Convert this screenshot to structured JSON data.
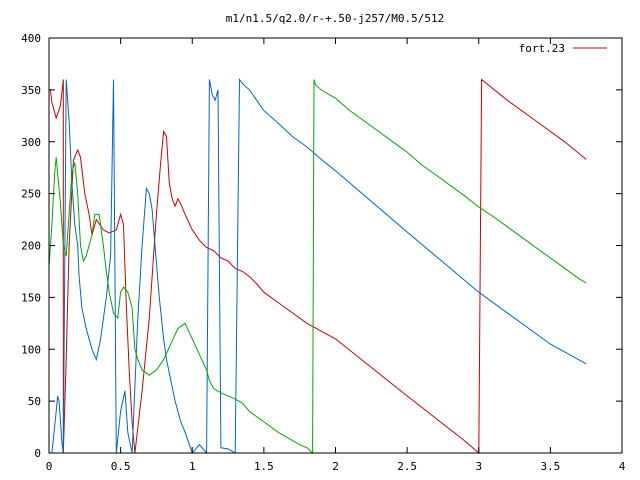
{
  "chart_data": {
    "type": "line",
    "title": "m1/n1.5/q2.0/r-+.50-j257/M0.5/512",
    "xlabel": "",
    "ylabel": "",
    "xlim": [
      0,
      4
    ],
    "ylim": [
      0,
      400
    ],
    "x_ticks": [
      0,
      0.5,
      1,
      1.5,
      2,
      2.5,
      3,
      3.5,
      4
    ],
    "x_tick_labels": [
      "0",
      "0.5",
      "1",
      "1.5",
      "2",
      "2.5",
      "3",
      "3.5",
      "4"
    ],
    "y_ticks": [
      0,
      50,
      100,
      150,
      200,
      250,
      300,
      350,
      400
    ],
    "y_tick_labels": [
      "0",
      "50",
      "100",
      "150",
      "200",
      "250",
      "300",
      "350",
      "400"
    ],
    "grid": false,
    "legend_position": "top-right",
    "legend": [
      {
        "label": "fort.23",
        "color": "#cc0000"
      }
    ],
    "series": [
      {
        "color": "#cc0000",
        "x": [
          0.0,
          0.01,
          0.02,
          0.05,
          0.08,
          0.1,
          0.1,
          0.12,
          0.14,
          0.17,
          0.2,
          0.22,
          0.25,
          0.28,
          0.3,
          0.33,
          0.38,
          0.42,
          0.47,
          0.5,
          0.52,
          0.54,
          0.56,
          0.58,
          0.6,
          0.65,
          0.7,
          0.75,
          0.78,
          0.8,
          0.82,
          0.84,
          0.86,
          0.88,
          0.9,
          0.92,
          0.95,
          1.0,
          1.05,
          1.1,
          1.15,
          1.2,
          1.25,
          1.3,
          1.35,
          1.4,
          1.45,
          1.5,
          1.6,
          1.7,
          1.8,
          2.0,
          2.5,
          2.9,
          3.0,
          3.0,
          3.02,
          3.2,
          3.4,
          3.6,
          3.75
        ],
        "y": [
          350,
          350,
          338,
          323,
          335,
          360,
          0,
          90,
          200,
          282,
          292,
          285,
          250,
          230,
          210,
          225,
          215,
          212,
          215,
          230,
          220,
          140,
          80,
          30,
          0,
          60,
          130,
          230,
          280,
          310,
          305,
          260,
          245,
          238,
          245,
          240,
          230,
          215,
          205,
          198,
          195,
          188,
          185,
          178,
          175,
          170,
          163,
          155,
          145,
          135,
          125,
          110,
          55,
          12,
          0,
          0,
          360,
          340,
          320,
          300,
          283
        ]
      },
      {
        "color": "#0066cc",
        "x": [
          0.0,
          0.02,
          0.05,
          0.06,
          0.07,
          0.08,
          0.09,
          0.1,
          0.12,
          0.14,
          0.16,
          0.18,
          0.2,
          0.21,
          0.23,
          0.26,
          0.3,
          0.33,
          0.36,
          0.4,
          0.43,
          0.45,
          0.47,
          0.5,
          0.53,
          0.55,
          0.58,
          0.62,
          0.65,
          0.68,
          0.7,
          0.72,
          0.74,
          0.77,
          0.8,
          0.82,
          0.85,
          0.88,
          0.92,
          0.95,
          1.0,
          1.05,
          1.1,
          1.12,
          1.14,
          1.16,
          1.18,
          1.2,
          1.25,
          1.3,
          1.33,
          1.35,
          1.4,
          1.45,
          1.5,
          1.6,
          1.7,
          1.8,
          1.9,
          2.0,
          2.5,
          3.0,
          3.5,
          3.75
        ],
        "y": [
          0,
          0,
          40,
          55,
          50,
          30,
          10,
          0,
          360,
          320,
          260,
          220,
          200,
          170,
          140,
          120,
          100,
          90,
          110,
          150,
          190,
          360,
          0,
          40,
          60,
          20,
          0,
          130,
          200,
          255,
          250,
          235,
          200,
          150,
          110,
          90,
          70,
          50,
          30,
          20,
          0,
          8,
          0,
          360,
          345,
          340,
          350,
          5,
          4,
          0,
          360,
          356,
          350,
          340,
          330,
          318,
          305,
          295,
          283,
          272,
          213,
          155,
          105,
          86
        ]
      },
      {
        "color": "#00aa00",
        "x": [
          0.0,
          0.02,
          0.04,
          0.05,
          0.06,
          0.08,
          0.1,
          0.12,
          0.14,
          0.16,
          0.18,
          0.2,
          0.22,
          0.24,
          0.26,
          0.28,
          0.3,
          0.32,
          0.35,
          0.38,
          0.4,
          0.42,
          0.45,
          0.48,
          0.5,
          0.52,
          0.55,
          0.58,
          0.6,
          0.62,
          0.65,
          0.7,
          0.75,
          0.8,
          0.85,
          0.9,
          0.95,
          1.0,
          1.05,
          1.1,
          1.12,
          1.15,
          1.2,
          1.25,
          1.3,
          1.35,
          1.4,
          1.5,
          1.6,
          1.7,
          1.75,
          1.8,
          1.84,
          1.85,
          1.86,
          1.9,
          2.0,
          2.1,
          2.2,
          2.3,
          2.4,
          2.5,
          2.6,
          2.7,
          2.8,
          2.9,
          3.0,
          3.1,
          3.2,
          3.3,
          3.4,
          3.5,
          3.6,
          3.7,
          3.75
        ],
        "y": [
          180,
          220,
          270,
          285,
          270,
          240,
          200,
          190,
          230,
          270,
          280,
          250,
          200,
          185,
          190,
          200,
          210,
          230,
          230,
          200,
          175,
          155,
          135,
          130,
          155,
          160,
          155,
          140,
          100,
          90,
          80,
          75,
          80,
          90,
          105,
          120,
          125,
          110,
          95,
          80,
          70,
          62,
          58,
          55,
          52,
          48,
          40,
          30,
          20,
          12,
          8,
          5,
          0,
          360,
          355,
          350,
          342,
          330,
          320,
          310,
          300,
          290,
          278,
          268,
          258,
          248,
          237,
          228,
          218,
          208,
          198,
          188,
          178,
          168,
          164
        ]
      }
    ]
  }
}
